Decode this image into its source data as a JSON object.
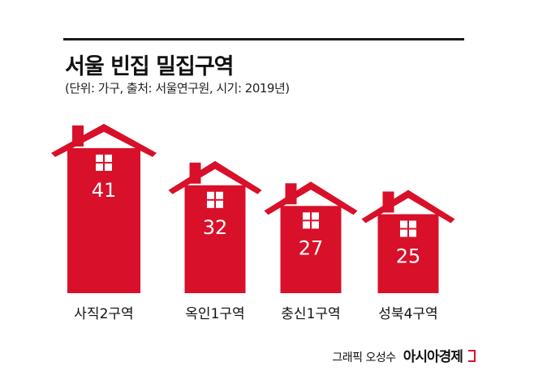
{
  "title": "서울 빈집 밀집구역",
  "subtitle": "(단위: 가구, 출처: 서울연구원, 시기: 2019년)",
  "credit": {
    "artist": "그래픽 오성수",
    "brand": "아시아경제"
  },
  "colors": {
    "house": "#d8102a",
    "label_text": "#ffffff",
    "window": "#ffffff",
    "rule": "#1a1a1a"
  },
  "chart_data": {
    "type": "bar",
    "categories": [
      "사직2구역",
      "옥인1구역",
      "충신1구역",
      "성북4구역"
    ],
    "values": [
      41,
      32,
      27,
      25
    ],
    "value_labels": [
      "41",
      "32",
      "27",
      "25"
    ],
    "title": "서울 빈집 밀집구역",
    "subtitle": "(단위: 가구, 출처: 서울연구원, 시기: 2019년)",
    "xlabel": "",
    "ylabel": "",
    "bar_shape": "house-icon",
    "grid": false,
    "legend": "none"
  }
}
